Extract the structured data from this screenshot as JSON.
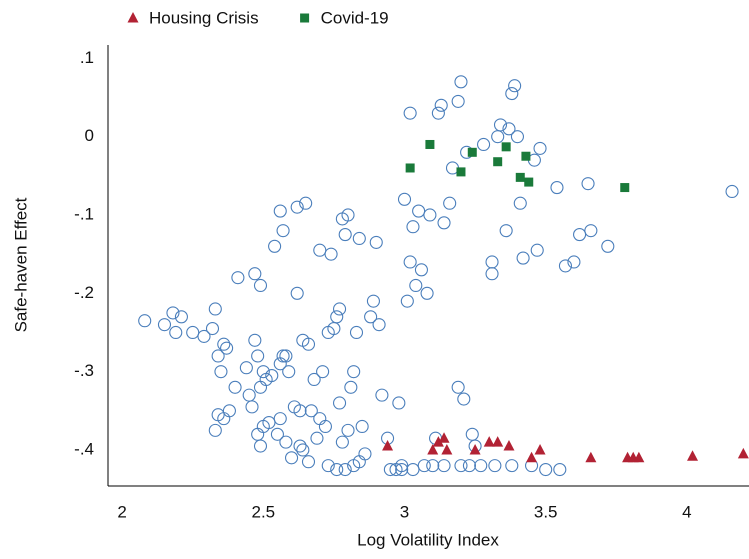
{
  "chart_data": {
    "type": "scatter",
    "x_label": "Log Volatility Index",
    "y_label": "Safe-haven Effect",
    "xlim": [
      1.95,
      4.22
    ],
    "ylim": [
      -0.446,
      0.117
    ],
    "xticks": [
      2,
      2.5,
      3,
      3.5,
      4
    ],
    "yticks": [
      {
        "value": 0.1,
        "label": ".1"
      },
      0,
      {
        "value": -0.1,
        "label": "-.1"
      },
      {
        "value": -0.2,
        "label": "-.2"
      },
      {
        "value": -0.3,
        "label": "-.3"
      },
      {
        "value": -0.4,
        "label": "-.4"
      }
    ],
    "grid": false,
    "legend_position": "top",
    "series": [
      {
        "color": "#4a7ebb",
        "marker": "circle",
        "x": [
          2.08,
          2.15,
          2.18,
          2.19,
          2.21,
          2.25,
          2.29,
          2.32,
          2.33,
          2.34,
          2.36,
          2.37,
          2.35,
          2.34,
          2.33,
          2.36,
          2.38,
          2.4,
          2.41,
          2.44,
          2.45,
          2.46,
          2.47,
          2.47,
          2.49,
          2.48,
          2.49,
          2.5,
          2.51,
          2.53,
          2.48,
          2.5,
          2.52,
          2.49,
          2.54,
          2.56,
          2.56,
          2.57,
          2.57,
          2.58,
          2.59,
          2.55,
          2.56,
          2.58,
          2.6,
          2.62,
          2.62,
          2.65,
          2.61,
          2.63,
          2.64,
          2.66,
          2.63,
          2.64,
          2.66,
          2.67,
          2.68,
          2.69,
          2.7,
          2.71,
          2.7,
          2.72,
          2.73,
          2.74,
          2.75,
          2.76,
          2.77,
          2.78,
          2.79,
          2.8,
          2.77,
          2.78,
          2.8,
          2.81,
          2.82,
          2.83,
          2.84,
          2.85,
          2.86,
          2.88,
          2.89,
          2.9,
          2.91,
          2.92,
          2.73,
          2.76,
          2.79,
          2.82,
          2.84,
          2.94,
          2.95,
          2.97,
          2.98,
          2.99,
          3.0,
          3.01,
          3.02,
          3.03,
          3.02,
          3.04,
          3.05,
          3.06,
          3.08,
          3.09,
          3.1,
          3.11,
          3.12,
          3.13,
          3.14,
          3.16,
          3.17,
          3.19,
          3.2,
          3.19,
          3.21,
          3.2,
          3.22,
          3.23,
          3.24,
          3.25,
          3.28,
          3.31,
          3.31,
          3.33,
          3.34,
          3.36,
          3.37,
          3.38,
          3.39,
          3.4,
          3.41,
          3.42,
          3.46,
          3.47,
          3.48,
          3.5,
          3.54,
          3.55,
          3.57,
          3.6,
          3.62,
          3.65,
          3.66,
          3.72,
          4.16,
          3.38,
          3.45,
          3.32,
          3.27,
          3.14,
          3.07,
          3.03,
          2.99
        ],
        "values": [
          -0.235,
          -0.24,
          -0.225,
          -0.25,
          -0.23,
          -0.25,
          -0.255,
          -0.245,
          -0.22,
          -0.28,
          -0.265,
          -0.27,
          -0.3,
          -0.355,
          -0.375,
          -0.36,
          -0.35,
          -0.32,
          -0.18,
          -0.295,
          -0.33,
          -0.345,
          -0.26,
          -0.175,
          -0.19,
          -0.28,
          -0.32,
          -0.3,
          -0.31,
          -0.305,
          -0.38,
          -0.37,
          -0.365,
          -0.395,
          -0.14,
          -0.095,
          -0.29,
          -0.12,
          -0.28,
          -0.28,
          -0.3,
          -0.38,
          -0.36,
          -0.39,
          -0.41,
          -0.2,
          -0.09,
          -0.085,
          -0.345,
          -0.35,
          -0.26,
          -0.265,
          -0.395,
          -0.4,
          -0.415,
          -0.35,
          -0.31,
          -0.385,
          -0.36,
          -0.3,
          -0.145,
          -0.37,
          -0.25,
          -0.15,
          -0.245,
          -0.23,
          -0.22,
          -0.105,
          -0.125,
          -0.1,
          -0.34,
          -0.39,
          -0.375,
          -0.32,
          -0.3,
          -0.25,
          -0.13,
          -0.37,
          -0.405,
          -0.23,
          -0.21,
          -0.135,
          -0.24,
          -0.33,
          -0.42,
          -0.425,
          -0.425,
          -0.42,
          -0.415,
          -0.385,
          -0.425,
          -0.425,
          -0.34,
          -0.42,
          -0.08,
          -0.21,
          -0.16,
          -0.115,
          0.03,
          -0.19,
          -0.095,
          -0.17,
          -0.2,
          -0.1,
          -0.42,
          -0.385,
          0.03,
          0.04,
          -0.11,
          -0.085,
          -0.04,
          0.045,
          0.07,
          -0.32,
          -0.335,
          -0.42,
          -0.02,
          -0.42,
          -0.38,
          -0.395,
          -0.01,
          -0.175,
          -0.16,
          0.0,
          0.015,
          -0.12,
          0.01,
          0.055,
          0.065,
          0.0,
          -0.085,
          -0.155,
          -0.03,
          -0.145,
          -0.015,
          -0.425,
          -0.065,
          -0.425,
          -0.165,
          -0.16,
          -0.125,
          -0.06,
          -0.12,
          -0.14,
          -0.07,
          -0.42,
          -0.42,
          -0.42,
          -0.42,
          -0.42,
          -0.42,
          -0.425,
          -0.425
        ]
      },
      {
        "name": "Housing Crisis",
        "color": "#b22234",
        "marker": "triangle",
        "x": [
          2.94,
          3.1,
          3.12,
          3.14,
          3.15,
          3.25,
          3.3,
          3.33,
          3.37,
          3.45,
          3.48,
          3.66,
          3.79,
          3.81,
          3.83,
          4.02,
          4.2
        ],
        "values": [
          -0.395,
          -0.4,
          -0.39,
          -0.385,
          -0.4,
          -0.4,
          -0.39,
          -0.39,
          -0.395,
          -0.41,
          -0.4,
          -0.41,
          -0.41,
          -0.41,
          -0.41,
          -0.408,
          -0.405
        ]
      },
      {
        "name": "Covid-19",
        "color": "#1a7a3a",
        "marker": "square",
        "x": [
          3.02,
          3.09,
          3.2,
          3.24,
          3.33,
          3.36,
          3.41,
          3.43,
          3.44,
          3.78
        ],
        "values": [
          -0.04,
          -0.01,
          -0.045,
          -0.02,
          -0.032,
          -0.013,
          -0.052,
          -0.025,
          -0.058,
          -0.065
        ]
      }
    ]
  }
}
